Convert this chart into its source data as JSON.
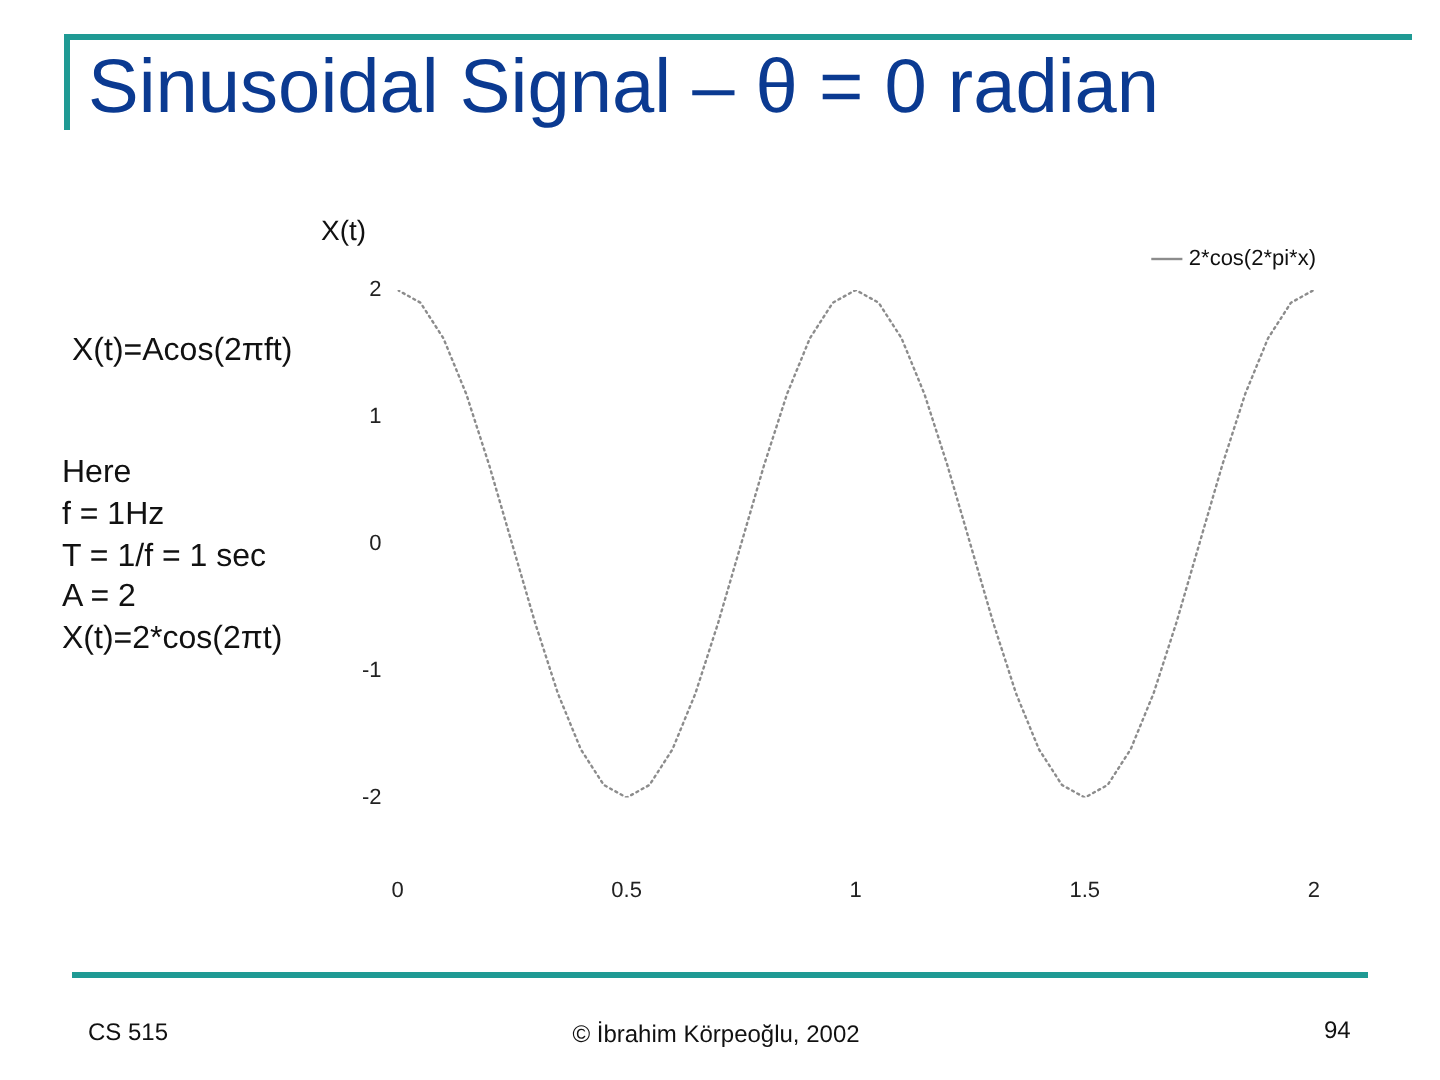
{
  "chart_data": {
    "type": "line",
    "title": "Sinusoidal Signal – θ = 0 radian",
    "ylabel": "X(t)",
    "x": [
      0,
      0.05,
      0.1,
      0.15,
      0.2,
      0.25,
      0.3,
      0.35,
      0.4,
      0.45,
      0.5,
      0.55,
      0.6,
      0.65,
      0.7,
      0.75,
      0.8,
      0.85,
      0.9,
      0.95,
      1,
      1.05,
      1.1,
      1.15,
      1.2,
      1.25,
      1.3,
      1.35,
      1.4,
      1.45,
      1.5,
      1.55,
      1.6,
      1.65,
      1.7,
      1.75,
      1.8,
      1.85,
      1.9,
      1.95,
      2
    ],
    "series": [
      {
        "name": "2*cos(2*pi*x)",
        "color": "#8c8c8c",
        "values": [
          2,
          1.9,
          1.62,
          1.18,
          0.62,
          0,
          -0.62,
          -1.18,
          -1.62,
          -1.9,
          -2,
          -1.9,
          -1.62,
          -1.18,
          -0.62,
          0,
          0.62,
          1.18,
          1.62,
          1.9,
          2,
          1.9,
          1.62,
          1.18,
          0.62,
          0,
          -0.62,
          -1.18,
          -1.62,
          -1.9,
          -2,
          -1.9,
          -1.62,
          -1.18,
          -0.62,
          0,
          0.62,
          1.18,
          1.62,
          1.9,
          2
        ]
      }
    ],
    "xlim": [
      0,
      2
    ],
    "xticks": [
      0,
      0.5,
      1,
      1.5,
      2
    ],
    "ylim": [
      -2,
      2
    ],
    "yticks": [
      -2,
      -1,
      0,
      1,
      2
    ],
    "grid": false,
    "legend": "top right",
    "marker": "none",
    "line_style": "dotted",
    "annotations": [
      "X(t)=Acos(2πft)",
      "Here\nf = 1Hz\nT = 1/f = 1 sec\nA = 2\nX(t)=2*cos(2πt)",
      "CS 515",
      "© İbrahim Körpeoğlu, 2002",
      "94"
    ]
  }
}
